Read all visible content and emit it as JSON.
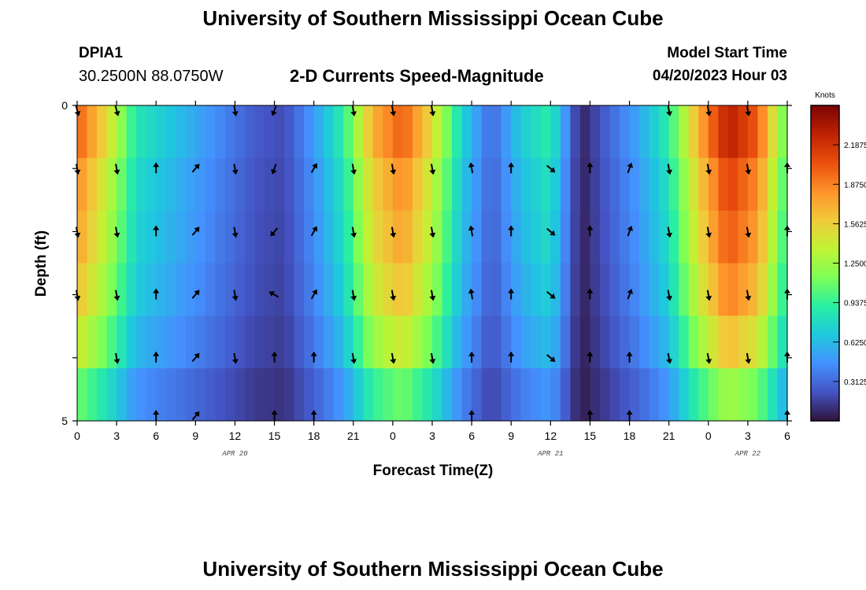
{
  "header": {
    "title": "University of Southern Mississippi Ocean Cube",
    "station": "DPIA1",
    "coords": "30.2500N  88.0750W",
    "subtitle": "2-D Currents Speed-Magnitude",
    "model_start_label": "Model Start Time",
    "model_start_value": "04/20/2023 Hour 03"
  },
  "footer": {
    "title": "University of Southern Mississippi Ocean Cube"
  },
  "colors": {
    "scale": [
      "#30123b",
      "#4454c4",
      "#4490fe",
      "#1fc8de",
      "#29efa2",
      "#7dff56",
      "#c1f334",
      "#f1ca3a",
      "#fe922a",
      "#ea4f0d",
      "#be2102",
      "#7a0403"
    ]
  },
  "chart_data": {
    "type": "heatmap",
    "title": "2-D Currents Speed-Magnitude",
    "xlabel": "Forecast Time(Z)",
    "ylabel": "Depth (ft)",
    "x_tick_labels": [
      "0",
      "3",
      "6",
      "9",
      "12",
      "15",
      "18",
      "21",
      "0",
      "3",
      "6",
      "9",
      "12",
      "15",
      "18",
      "21",
      "0",
      "3",
      "6"
    ],
    "date_labels": [
      {
        "label": "APR 20",
        "tick_index": 4
      },
      {
        "label": "APR 21",
        "tick_index": 12
      },
      {
        "label": "APR 22",
        "tick_index": 17
      }
    ],
    "y_tick_labels": [
      "0",
      "5"
    ],
    "ylim": [
      0,
      5
    ],
    "colorbar": {
      "title": "Knots",
      "min": 0,
      "max": 2.5,
      "ticks": [
        "2.1875",
        "1.8750",
        "1.5625",
        "1.2500",
        "0.9375",
        "0.6250",
        "0.3125"
      ]
    },
    "speed_knots_by_hour": [
      2.0,
      1.5,
      0.85,
      0.7,
      0.55,
      0.4,
      0.25,
      0.2,
      0.5,
      0.9,
      1.7,
      2.0,
      1.5,
      0.75,
      0.3,
      0.7,
      0.9,
      0.05,
      0.3,
      0.55,
      0.9,
      1.7,
      2.3,
      2.0,
      1.0
    ],
    "depth_factors": [
      1.0,
      0.92,
      0.88,
      0.82,
      0.72,
      0.55
    ],
    "vector_depths_ft": [
      0,
      1,
      2,
      3,
      4,
      5
    ],
    "vectors": [
      {
        "hour": 0,
        "dirs": [
          165,
          170,
          170,
          170,
          null,
          null
        ]
      },
      {
        "hour": 3,
        "dirs": [
          165,
          170,
          170,
          170,
          170,
          null
        ]
      },
      {
        "hour": 6,
        "dirs": [
          null,
          0,
          0,
          0,
          0,
          0
        ]
      },
      {
        "hour": 9,
        "dirs": [
          null,
          40,
          40,
          40,
          40,
          40
        ]
      },
      {
        "hour": 12,
        "dirs": [
          170,
          170,
          170,
          170,
          170,
          null
        ]
      },
      {
        "hour": 15,
        "dirs": [
          200,
          200,
          220,
          300,
          0,
          0
        ]
      },
      {
        "hour": 18,
        "dirs": [
          null,
          30,
          30,
          30,
          0,
          0
        ]
      },
      {
        "hour": 21,
        "dirs": [
          170,
          170,
          170,
          170,
          170,
          null
        ]
      },
      {
        "hour": 24,
        "dirs": [
          170,
          170,
          170,
          170,
          170,
          null
        ]
      },
      {
        "hour": 27,
        "dirs": [
          170,
          170,
          170,
          170,
          170,
          null
        ]
      },
      {
        "hour": 30,
        "dirs": [
          null,
          350,
          350,
          350,
          0,
          0
        ]
      },
      {
        "hour": 33,
        "dirs": [
          null,
          0,
          0,
          0,
          0,
          null
        ]
      },
      {
        "hour": 36,
        "dirs": [
          null,
          130,
          130,
          130,
          130,
          null
        ]
      },
      {
        "hour": 39,
        "dirs": [
          null,
          0,
          0,
          0,
          0,
          0
        ]
      },
      {
        "hour": 42,
        "dirs": [
          null,
          20,
          20,
          20,
          0,
          0
        ]
      },
      {
        "hour": 45,
        "dirs": [
          170,
          170,
          170,
          170,
          170,
          null
        ]
      },
      {
        "hour": 48,
        "dirs": [
          170,
          170,
          170,
          170,
          170,
          null
        ]
      },
      {
        "hour": 51,
        "dirs": [
          170,
          170,
          170,
          170,
          170,
          null
        ]
      },
      {
        "hour": 54,
        "dirs": [
          null,
          0,
          0,
          0,
          0,
          0
        ]
      }
    ]
  }
}
